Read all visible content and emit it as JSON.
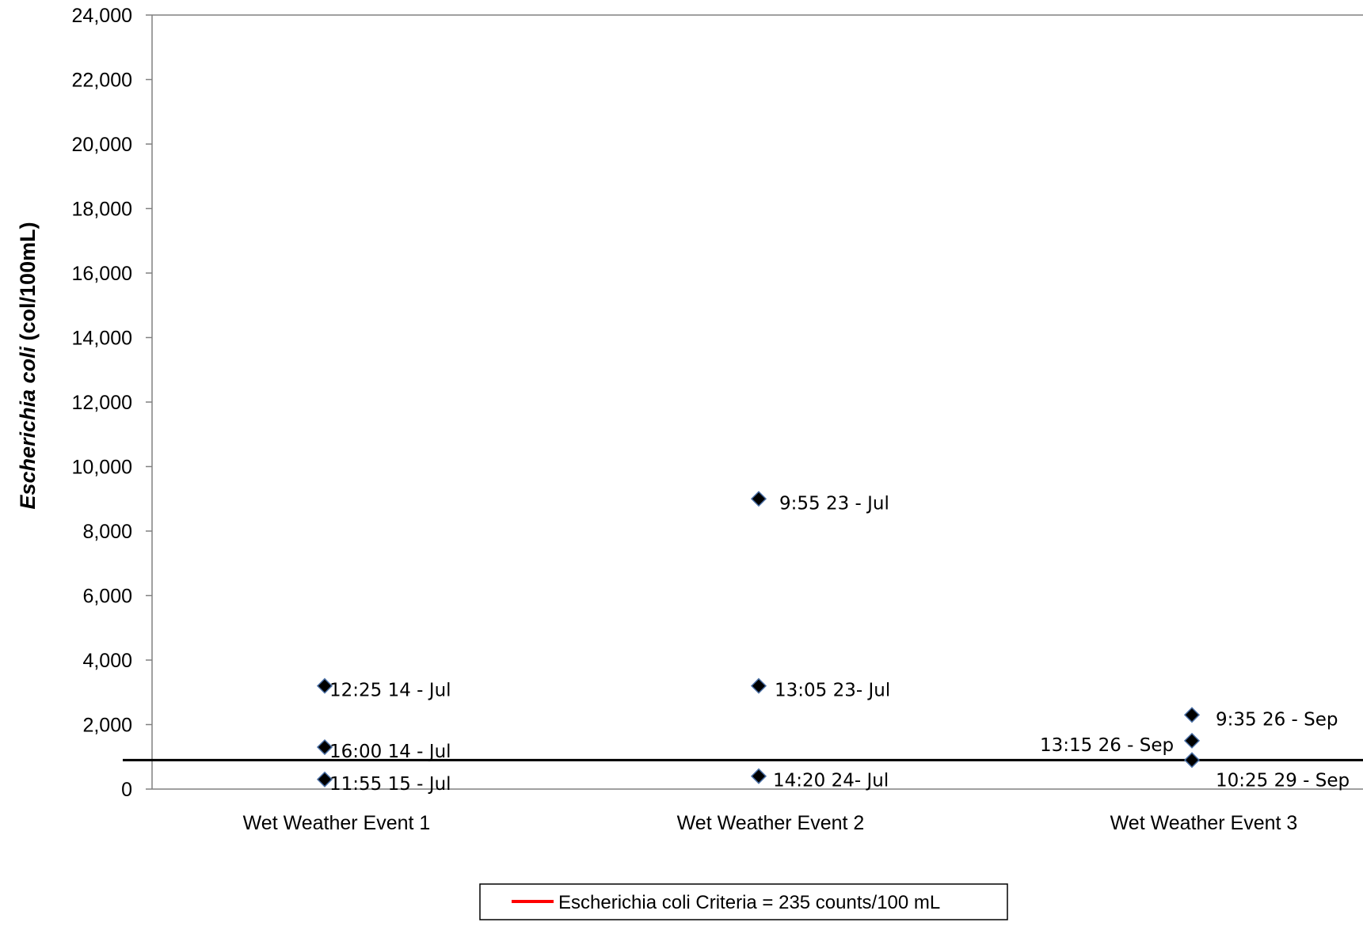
{
  "chart_data": {
    "type": "scatter",
    "ylabel_italic": "Escherichia coli",
    "ylabel_rest": " (col/100mL)",
    "ylim": [
      0,
      24000
    ],
    "yticks": [
      0,
      2000,
      4000,
      6000,
      8000,
      10000,
      12000,
      14000,
      16000,
      18000,
      20000,
      22000,
      24000
    ],
    "ytick_labels": [
      "0",
      "2,000",
      "4,000",
      "6,000",
      "8,000",
      "10,000",
      "12,000",
      "14,000",
      "16,000",
      "18,000",
      "20,000",
      "22,000",
      "24,000"
    ],
    "categories": [
      "Wet Weather Event 1",
      "Wet Weather Event 2",
      "Wet Weather Event 3"
    ],
    "points": [
      {
        "category": 0,
        "y": 3200,
        "label": "12:25 14 - Jul"
      },
      {
        "category": 0,
        "y": 1300,
        "label": "16:00 14 - Jul"
      },
      {
        "category": 0,
        "y": 300,
        "label": "11:55 15 - Jul"
      },
      {
        "category": 1,
        "y": 9000,
        "label": "9:55 23 - Jul"
      },
      {
        "category": 1,
        "y": 3200,
        "label": "13:05 23- Jul"
      },
      {
        "category": 1,
        "y": 400,
        "label": "14:20 24- Jul"
      },
      {
        "category": 2,
        "y": 2300,
        "label": "9:35 26 - Sep"
      },
      {
        "category": 2,
        "y": 1500,
        "label": "13:15 26 - Sep"
      },
      {
        "category": 2,
        "y": 900,
        "label": "10:25 29 - Sep"
      }
    ],
    "reference_line": {
      "y": 900,
      "color": "#000000"
    },
    "legend": {
      "label": "Escherichia coli Criteria = 235 counts/100 mL",
      "color": "#ff0000",
      "placement": "bottom-center"
    },
    "grid": false
  }
}
